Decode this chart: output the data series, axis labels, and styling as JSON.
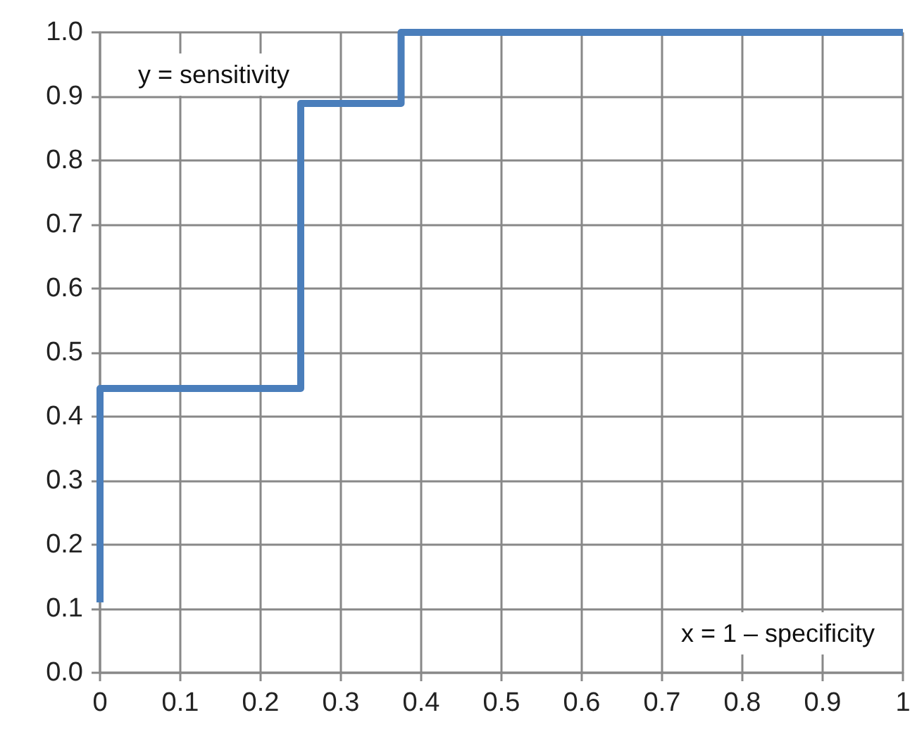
{
  "chart_data": {
    "type": "line",
    "x": [
      0,
      0,
      0.25,
      0.25,
      0.375,
      0.375,
      1
    ],
    "series": [
      {
        "color": "#4a7ebb",
        "values": [
          0.11,
          0.444,
          0.444,
          0.889,
          0.889,
          1,
          1
        ]
      }
    ],
    "xlim": [
      0,
      1
    ],
    "xticks": [
      0,
      0.1,
      0.2,
      0.3,
      0.4,
      0.5,
      0.6,
      0.7,
      0.8,
      0.9,
      1
    ],
    "ylim": [
      0,
      1
    ],
    "yticks": [
      {
        "value": 0,
        "label": "0.0"
      },
      0.1,
      0.2,
      0.3,
      0.4,
      0.5,
      0.6,
      0.7,
      0.8,
      0.9,
      {
        "value": 1,
        "label": "1.0"
      }
    ],
    "grid": true,
    "marker": "none",
    "line_style": "solid",
    "annotations": [
      "y = sensitivity",
      "x = 1 – specificity"
    ]
  }
}
